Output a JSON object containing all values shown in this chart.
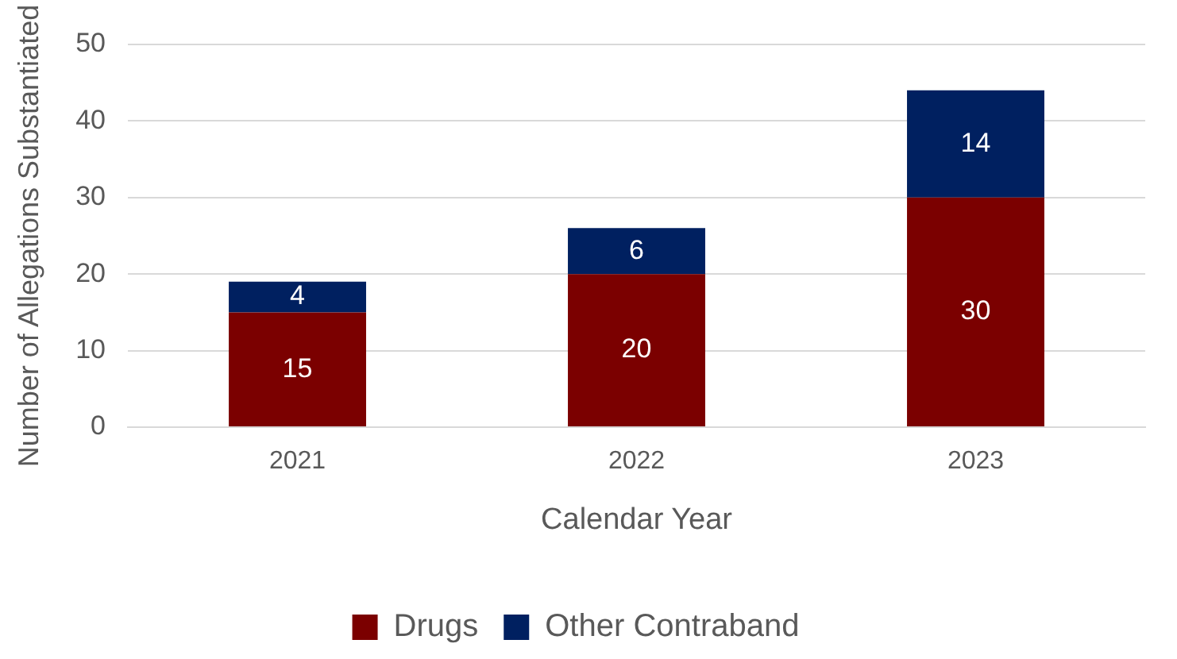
{
  "chart_data": {
    "type": "bar",
    "stacked": true,
    "xlabel": "Calendar Year",
    "ylabel": "Number of Allegations Substantiated",
    "categories": [
      "2021",
      "2022",
      "2023"
    ],
    "series": [
      {
        "name": "Drugs",
        "color": "#7b0000",
        "values": [
          15,
          20,
          30
        ]
      },
      {
        "name": "Other Contraband",
        "color": "#002060",
        "values": [
          4,
          6,
          14
        ]
      }
    ],
    "ylim": [
      0,
      50
    ],
    "yticks": [
      0,
      10,
      20,
      30,
      40,
      50
    ],
    "grid": "y",
    "legend": "bottom",
    "data_labels": true
  }
}
